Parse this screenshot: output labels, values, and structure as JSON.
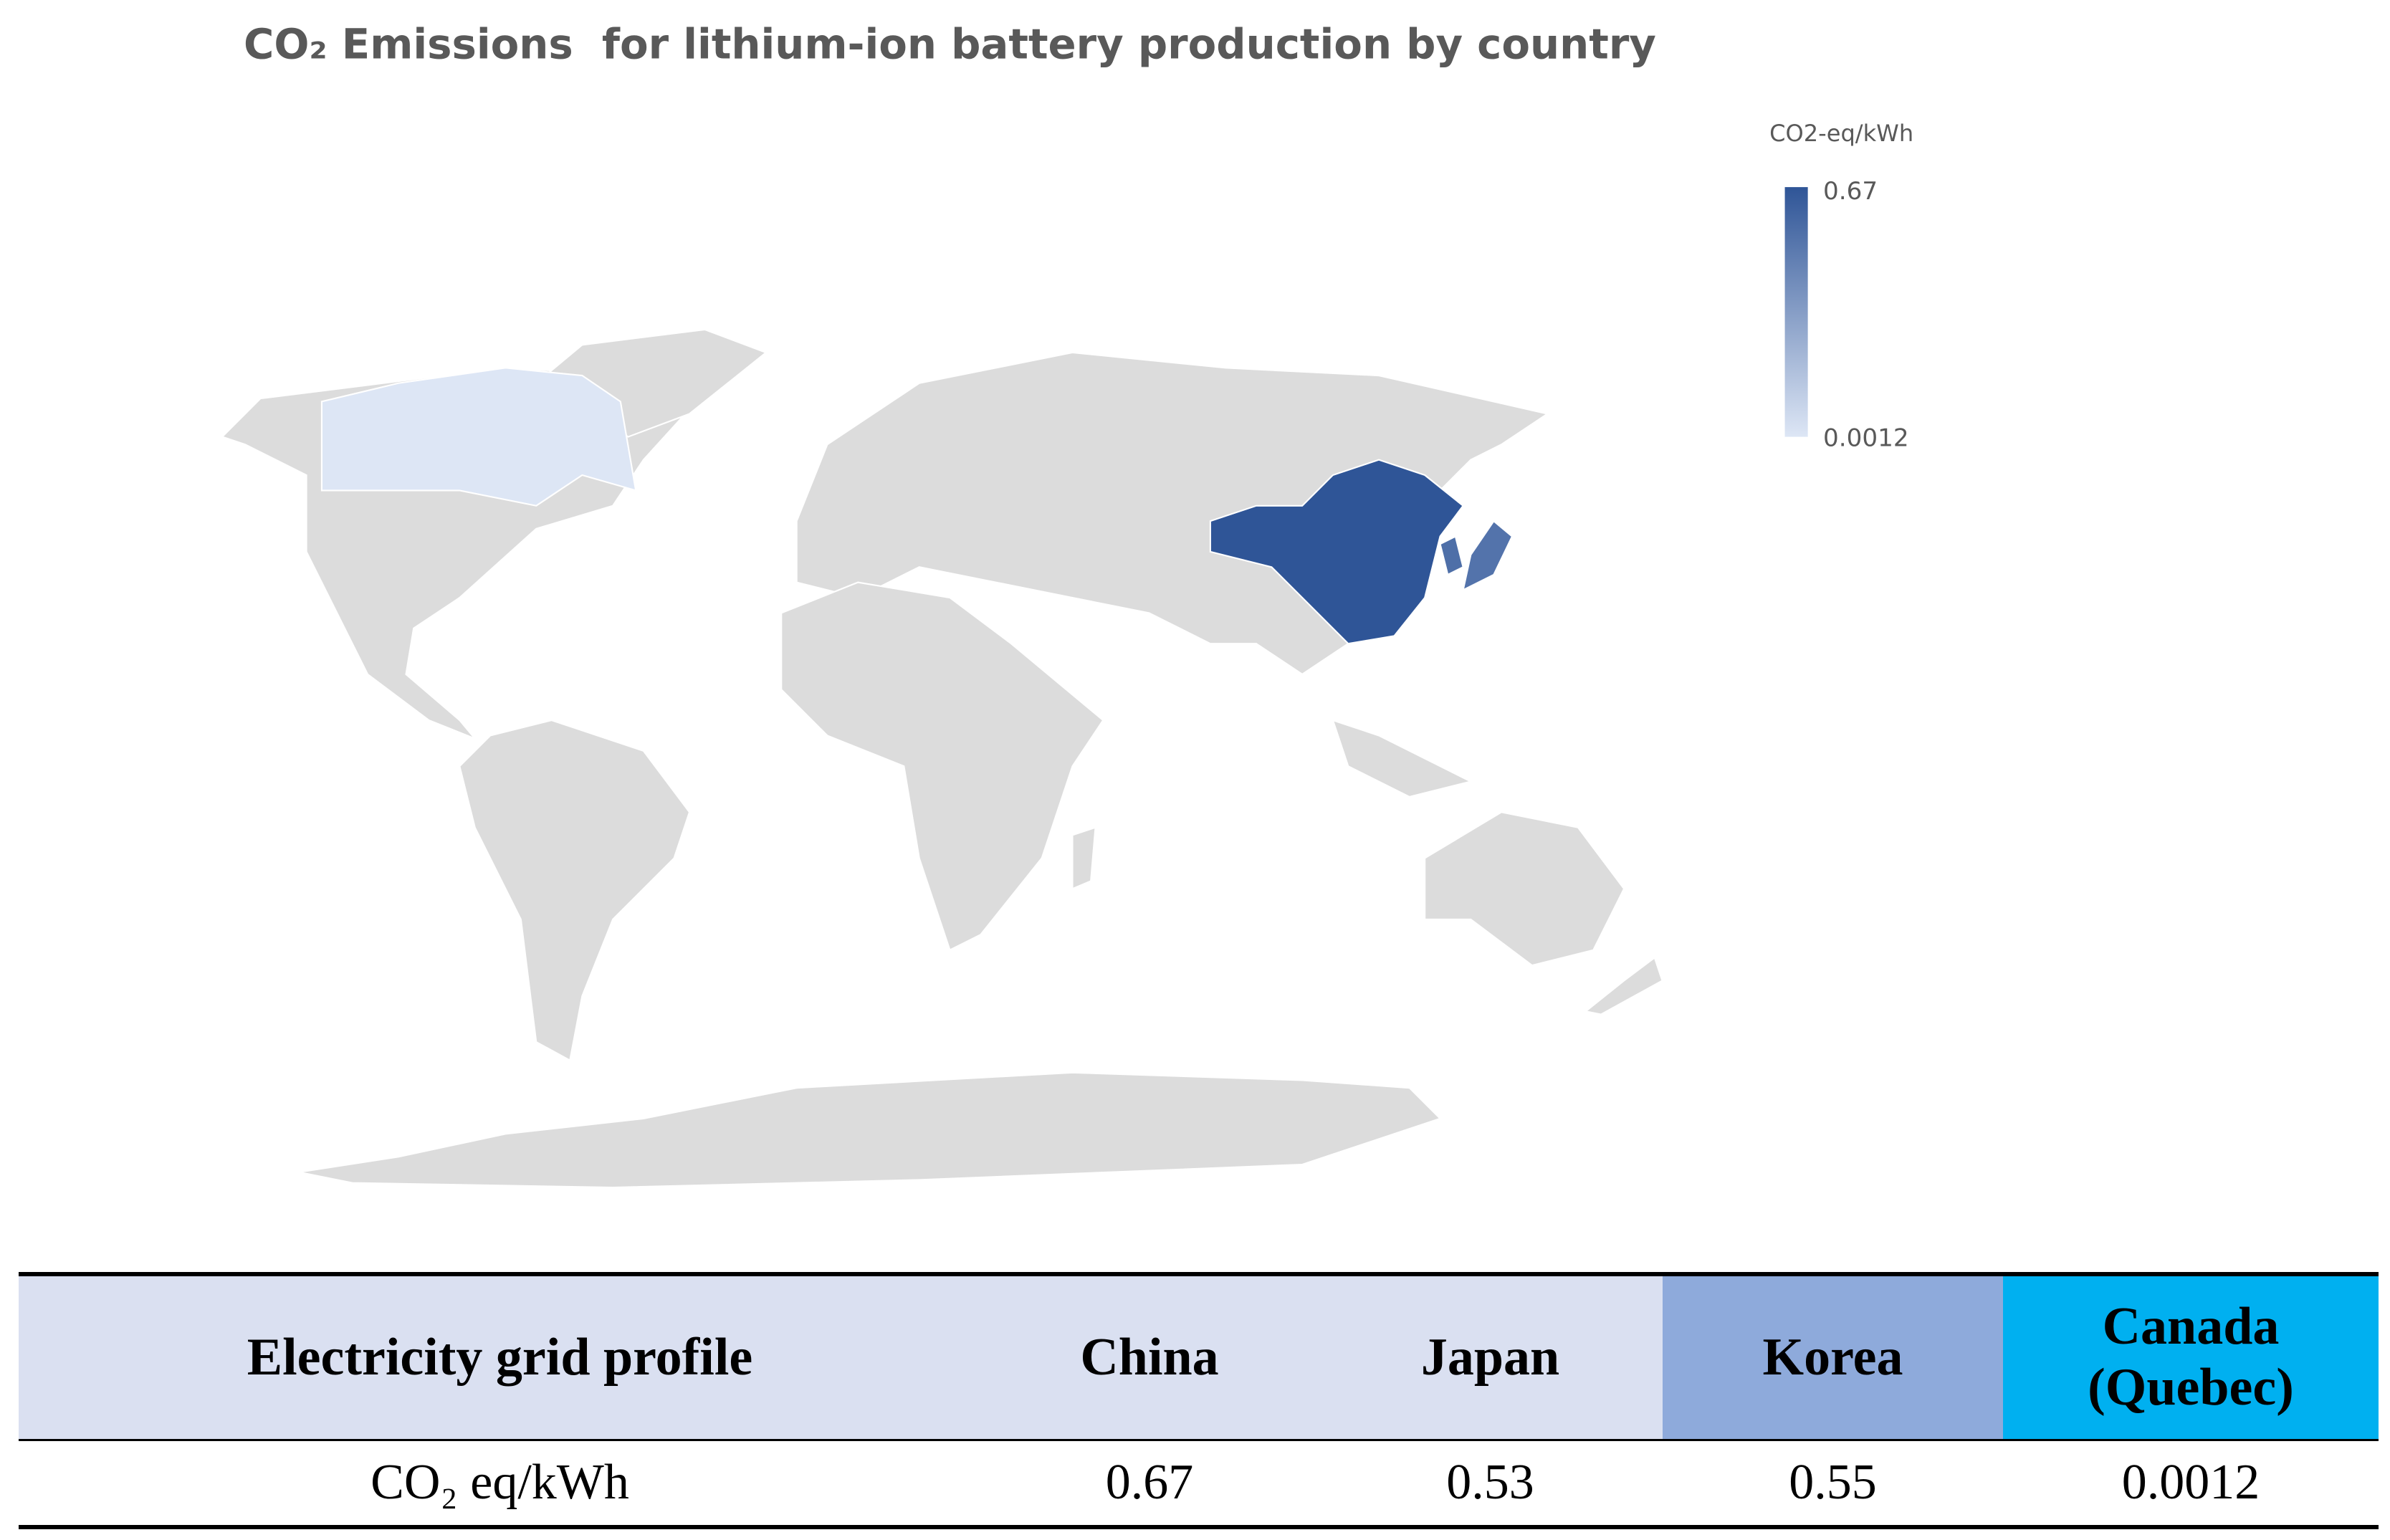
{
  "map": {
    "title": "CO₂ Emissions  for lithium-ion battery production by country",
    "legend": {
      "title": "CO2-eq/kWh",
      "max": 0.67,
      "min": 0.0012
    }
  },
  "table": {
    "header": [
      "Electricity grid profile",
      "China",
      "Japan",
      "Korea",
      "Canada (Quebec)"
    ],
    "rows": [
      {
        "label": "CO₂ eq/kWh",
        "values": [
          0.67,
          0.53,
          0.55,
          0.0012
        ]
      }
    ]
  }
}
